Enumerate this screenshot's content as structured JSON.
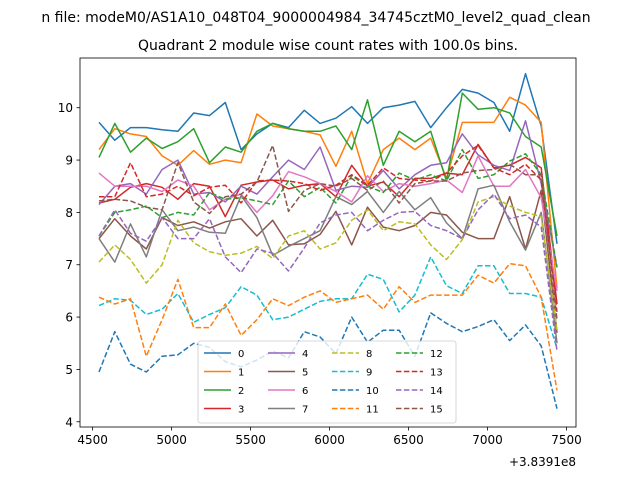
{
  "figure": {
    "suptitle": "n file: modeM0/AS1A10_048T04_9000004984_34745cztM0_level2_quad_clean"
  },
  "chart_data": {
    "type": "line",
    "title": "Quadrant 2 module wise count rates with 100.0s bins.",
    "xlabel": "",
    "ylabel": "",
    "offset_text": "+3.8391e8",
    "xlim": [
      4420,
      7560
    ],
    "ylim": [
      3.9,
      10.95
    ],
    "xticks": [
      4500,
      5000,
      5500,
      6000,
      6500,
      7000,
      7500
    ],
    "xtick_labels": [
      "4500",
      "5000",
      "5500",
      "6000",
      "6500",
      "7000",
      "7500"
    ],
    "yticks": [
      4,
      5,
      6,
      7,
      8,
      9,
      10
    ],
    "ytick_labels": [
      "4",
      "5",
      "6",
      "7",
      "8",
      "9",
      "10"
    ],
    "legend_position": "bottom-center",
    "x": [
      4540,
      4640,
      4740,
      4840,
      4940,
      5040,
      5140,
      5240,
      5340,
      5440,
      5540,
      5640,
      5740,
      5840,
      5940,
      6040,
      6140,
      6240,
      6340,
      6440,
      6540,
      6640,
      6740,
      6840,
      6940,
      7040,
      7140,
      7240,
      7340,
      7440
    ],
    "series": [
      {
        "name": "0",
        "color": "#1f77b4",
        "dash": "solid",
        "values": [
          9.72,
          9.38,
          9.62,
          9.62,
          9.58,
          9.55,
          9.9,
          9.85,
          10.1,
          9.2,
          9.5,
          9.7,
          9.62,
          9.95,
          9.7,
          9.8,
          10.02,
          9.7,
          10.0,
          10.05,
          10.12,
          9.62,
          10.0,
          10.35,
          10.28,
          10.1,
          9.55,
          10.65,
          9.65,
          7.4
        ]
      },
      {
        "name": "1",
        "color": "#ff7f0e",
        "dash": "solid",
        "values": [
          9.2,
          9.6,
          9.5,
          9.45,
          9.08,
          8.9,
          9.18,
          8.92,
          9.0,
          8.95,
          9.88,
          9.65,
          9.6,
          9.55,
          9.48,
          8.88,
          9.55,
          8.55,
          9.2,
          9.42,
          9.2,
          9.42,
          8.65,
          9.72,
          9.72,
          9.72,
          10.2,
          10.05,
          9.72,
          6.55
        ]
      },
      {
        "name": "2",
        "color": "#2ca02c",
        "dash": "solid",
        "values": [
          9.05,
          9.7,
          9.15,
          9.42,
          9.22,
          9.35,
          9.6,
          8.95,
          9.25,
          9.15,
          9.55,
          9.7,
          9.6,
          9.55,
          9.55,
          9.65,
          9.2,
          10.15,
          8.9,
          9.55,
          9.35,
          9.55,
          8.6,
          10.28,
          9.97,
          10.0,
          9.9,
          9.45,
          9.25,
          7.55
        ]
      },
      {
        "name": "3",
        "color": "#d62728",
        "dash": "solid",
        "values": [
          8.18,
          8.25,
          8.48,
          8.55,
          8.48,
          8.25,
          8.55,
          8.5,
          7.92,
          8.52,
          8.58,
          8.62,
          8.45,
          8.52,
          8.55,
          8.3,
          8.9,
          8.5,
          8.58,
          8.3,
          8.65,
          8.65,
          8.75,
          8.72,
          9.3,
          8.85,
          8.9,
          9.05,
          8.85,
          6.25
        ]
      },
      {
        "name": "4",
        "color": "#9467bd",
        "dash": "solid",
        "values": [
          8.15,
          8.5,
          8.55,
          8.35,
          8.82,
          9.0,
          8.35,
          8.38,
          8.2,
          8.5,
          8.35,
          8.68,
          9.0,
          8.82,
          9.25,
          8.42,
          8.5,
          8.48,
          8.8,
          8.45,
          8.72,
          8.9,
          8.95,
          9.5,
          9.1,
          8.9,
          8.8,
          9.75,
          8.55,
          6.95
        ]
      },
      {
        "name": "5",
        "color": "#8c564b",
        "dash": "solid",
        "values": [
          7.5,
          7.88,
          7.55,
          7.3,
          7.9,
          7.75,
          7.82,
          7.7,
          7.82,
          7.88,
          7.55,
          7.85,
          7.38,
          7.4,
          7.58,
          8.02,
          7.38,
          8.1,
          7.72,
          7.65,
          7.75,
          8.0,
          7.95,
          7.62,
          7.5,
          7.5,
          8.3,
          7.3,
          8.42,
          5.7
        ]
      },
      {
        "name": "6",
        "color": "#e377c2",
        "dash": "solid",
        "values": [
          8.75,
          8.5,
          8.5,
          8.5,
          8.4,
          8.62,
          8.5,
          8.05,
          8.25,
          8.35,
          8.0,
          8.32,
          8.78,
          8.68,
          8.55,
          8.4,
          8.2,
          8.7,
          8.4,
          8.55,
          8.5,
          8.55,
          8.62,
          8.38,
          9.08,
          8.5,
          8.5,
          8.82,
          8.28,
          6.5
        ]
      },
      {
        "name": "7",
        "color": "#7f7f7f",
        "dash": "solid",
        "values": [
          7.5,
          7.05,
          7.78,
          7.15,
          8.05,
          7.65,
          7.72,
          7.62,
          7.6,
          8.32,
          7.9,
          7.18,
          7.35,
          7.5,
          7.65,
          8.3,
          8.15,
          8.4,
          8.0,
          8.4,
          8.05,
          8.28,
          7.8,
          7.5,
          8.45,
          8.52,
          7.82,
          7.28,
          8.0,
          5.5
        ]
      },
      {
        "name": "8",
        "color": "#bcbd22",
        "dash": "dashed",
        "values": [
          7.05,
          7.38,
          7.1,
          6.65,
          7.0,
          7.85,
          7.42,
          7.25,
          7.18,
          7.22,
          7.35,
          7.12,
          7.55,
          7.65,
          7.3,
          7.42,
          7.85,
          8.05,
          7.65,
          7.82,
          7.78,
          7.38,
          7.1,
          7.48,
          8.2,
          8.3,
          8.12,
          8.0,
          7.92,
          5.75
        ]
      },
      {
        "name": "9",
        "color": "#17becf",
        "dash": "dashed",
        "values": [
          6.22,
          6.35,
          6.32,
          6.05,
          6.15,
          6.45,
          5.9,
          6.05,
          6.18,
          6.58,
          6.42,
          5.95,
          6.0,
          6.15,
          6.3,
          6.35,
          6.35,
          6.82,
          6.72,
          6.1,
          6.42,
          7.15,
          6.6,
          6.45,
          6.98,
          6.98,
          6.45,
          6.45,
          6.38,
          5.4
        ]
      },
      {
        "name": "10",
        "color": "#1f77b4",
        "dash": "dashed",
        "values": [
          4.95,
          5.72,
          5.1,
          4.95,
          5.25,
          5.28,
          5.5,
          5.42,
          5.15,
          5.05,
          5.18,
          5.35,
          5.22,
          5.72,
          5.62,
          5.3,
          6.0,
          5.52,
          5.75,
          5.75,
          5.25,
          6.08,
          5.88,
          5.72,
          5.82,
          5.95,
          5.55,
          5.85,
          5.45,
          4.25
        ]
      },
      {
        "name": "11",
        "color": "#ff7f0e",
        "dash": "dashed",
        "values": [
          6.38,
          6.25,
          6.35,
          5.25,
          5.95,
          6.72,
          5.8,
          5.8,
          6.25,
          5.65,
          5.95,
          6.35,
          6.22,
          6.38,
          6.5,
          6.28,
          6.35,
          6.42,
          6.15,
          6.58,
          6.28,
          6.42,
          6.42,
          6.42,
          6.8,
          6.65,
          7.02,
          6.98,
          6.38,
          4.6
        ]
      },
      {
        "name": "12",
        "color": "#2ca02c",
        "dash": "dashed",
        "values": [
          7.55,
          8.0,
          8.05,
          8.12,
          7.9,
          8.0,
          7.95,
          8.38,
          8.25,
          8.28,
          8.22,
          8.15,
          8.6,
          8.3,
          8.48,
          8.18,
          8.7,
          8.5,
          8.38,
          8.75,
          8.62,
          8.72,
          8.6,
          9.2,
          8.65,
          8.72,
          8.98,
          9.12,
          8.72,
          6.95
        ]
      },
      {
        "name": "13",
        "color": "#d62728",
        "dash": "dashed",
        "values": [
          8.3,
          8.3,
          8.95,
          8.3,
          8.35,
          8.5,
          8.32,
          8.48,
          8.52,
          8.18,
          8.6,
          8.62,
          8.6,
          8.55,
          8.42,
          8.52,
          8.72,
          8.52,
          8.85,
          8.65,
          8.62,
          8.6,
          8.75,
          9.08,
          9.28,
          8.85,
          8.72,
          8.92,
          8.62,
          6.1
        ]
      },
      {
        "name": "14",
        "color": "#9467bd",
        "dash": "dashed",
        "values": [
          7.55,
          8.05,
          7.6,
          7.45,
          7.9,
          7.5,
          7.5,
          7.88,
          7.15,
          6.85,
          7.3,
          7.22,
          6.88,
          7.32,
          7.8,
          7.95,
          8.0,
          7.65,
          7.85,
          8.0,
          8.02,
          7.75,
          7.65,
          7.5,
          8.05,
          8.35,
          7.88,
          7.95,
          7.72,
          5.35
        ]
      },
      {
        "name": "15",
        "color": "#8c564b",
        "dash": "dashed",
        "values": [
          8.22,
          8.25,
          8.22,
          8.1,
          8.05,
          8.95,
          8.2,
          7.98,
          8.3,
          8.35,
          8.58,
          9.28,
          8.02,
          8.42,
          8.55,
          8.5,
          8.65,
          8.42,
          8.6,
          8.18,
          8.55,
          8.6,
          8.6,
          8.75,
          8.8,
          8.82,
          8.92,
          8.72,
          8.72,
          5.95
        ]
      }
    ]
  }
}
